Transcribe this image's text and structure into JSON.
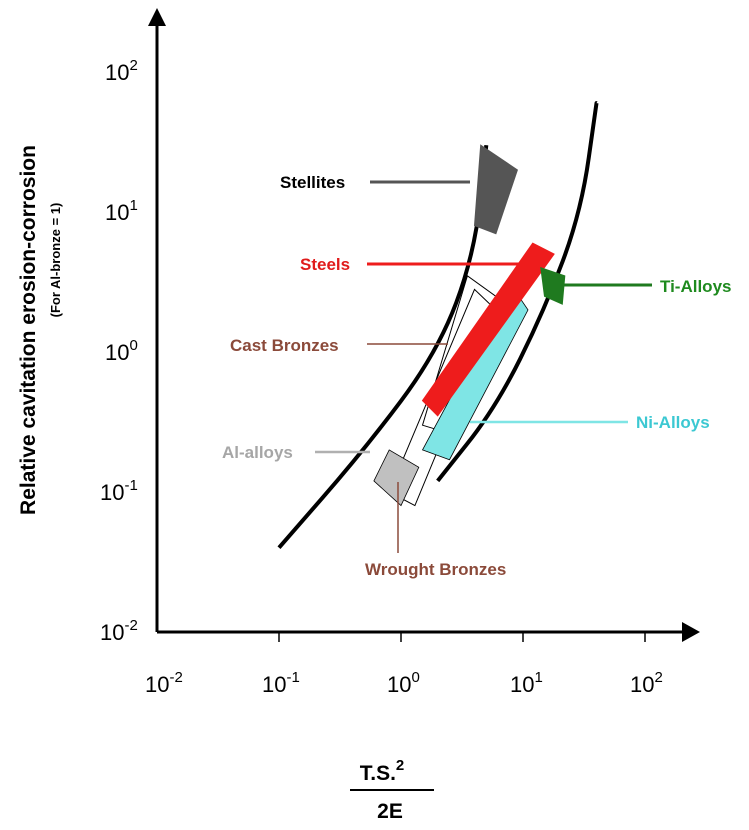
{
  "chart_data": {
    "type": "scatter",
    "title": "",
    "ylabel": "Relative cavitation erosion-corrosion",
    "ylabel_sub": "(For Al-bronze = 1)",
    "xlabel": {
      "numerator": "T.S.",
      "numerator_sup": "2",
      "denominator": "2E"
    },
    "xscale": "log",
    "yscale": "log",
    "x_ticks": [
      {
        "base": "10",
        "exp": "-2"
      },
      {
        "base": "10",
        "exp": "-1"
      },
      {
        "base": "10",
        "exp": "0"
      },
      {
        "base": "10",
        "exp": "1"
      },
      {
        "base": "10",
        "exp": "2"
      }
    ],
    "y_ticks": [
      {
        "base": "10",
        "exp": "-2"
      },
      {
        "base": "10",
        "exp": "-1"
      },
      {
        "base": "10",
        "exp": "0"
      },
      {
        "base": "10",
        "exp": "1"
      },
      {
        "base": "10",
        "exp": "2"
      }
    ],
    "band_curves": [
      {
        "name": "",
        "points": [
          [
            0.1,
            0.04
          ],
          [
            0.5,
            0.2
          ],
          [
            2,
            1
          ],
          [
            4,
            5
          ],
          [
            5,
            30
          ]
        ]
      },
      {
        "name": "",
        "points": [
          [
            2,
            0.12
          ],
          [
            6,
            0.4
          ],
          [
            15,
            2
          ],
          [
            30,
            10
          ],
          [
            40,
            60
          ]
        ]
      }
    ],
    "regions": [
      {
        "label": "Stellites",
        "color": "#555555",
        "fill": true,
        "polygon": [
          [
            4.5,
            30
          ],
          [
            9,
            20
          ],
          [
            6,
            7
          ],
          [
            4,
            8
          ]
        ],
        "label_color": "#000000"
      },
      {
        "label": "Steels",
        "color": "#ee1c1c",
        "fill": true,
        "polygon": [
          [
            1.5,
            0.45
          ],
          [
            2,
            0.35
          ],
          [
            18,
            5
          ],
          [
            12,
            6
          ]
        ],
        "label_color": "#e01b1b"
      },
      {
        "label": "Ti-Alloys",
        "color": "#1f7a1f",
        "fill": true,
        "polygon": [
          [
            14,
            4
          ],
          [
            22,
            3.5
          ],
          [
            21,
            2.2
          ],
          [
            15,
            2.5
          ]
        ],
        "label_color": "#1e8a1e"
      },
      {
        "label": "Cast Bronzes",
        "color": "#000000",
        "fill": false,
        "polygon": [
          [
            1.5,
            0.3
          ],
          [
            3,
            0.25
          ],
          [
            6,
            2.5
          ],
          [
            3.5,
            3.5
          ]
        ],
        "label_color": "#8b4a3a"
      },
      {
        "label": "Ni-Alloys",
        "color": "#7fe5e5",
        "fill": true,
        "polygon": [
          [
            1.5,
            0.2
          ],
          [
            2.5,
            0.17
          ],
          [
            11,
            2
          ],
          [
            8,
            3
          ]
        ],
        "label_color": "#3cc8d2"
      },
      {
        "label": "Al-alloys",
        "color": "#c0c0c0",
        "fill": true,
        "polygon": [
          [
            0.6,
            0.12
          ],
          [
            1,
            0.08
          ],
          [
            1.4,
            0.15
          ],
          [
            0.8,
            0.2
          ]
        ],
        "label_color": "#a6a6a6"
      },
      {
        "label": "Wrought Bronzes",
        "color": "#000000",
        "fill": false,
        "polygon": [
          [
            0.8,
            0.1
          ],
          [
            1.3,
            0.08
          ],
          [
            6,
            2
          ],
          [
            4,
            2.8
          ]
        ],
        "label_color": "#8b4a3a"
      }
    ]
  }
}
